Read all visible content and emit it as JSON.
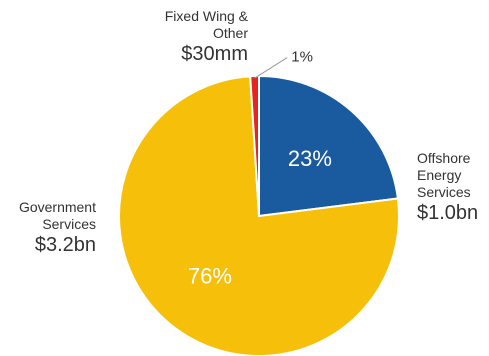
{
  "chart_data": {
    "type": "pie",
    "colors": {
      "offshore": "#1a5a9e",
      "government": "#f6c00a",
      "fixed_wing": "#e52521",
      "slice_border": "#ffffff",
      "pct_text": "#ffffff",
      "small_pct_text": "#333333",
      "label_text": "#333333"
    },
    "slices": [
      {
        "key": "offshore",
        "label_lines": [
          "Offshore",
          "Energy",
          "Services"
        ],
        "value_label": "$1.0bn",
        "percent": 23,
        "percent_label": "23%"
      },
      {
        "key": "government",
        "label_lines": [
          "Government",
          "Services"
        ],
        "value_label": "$3.2bn",
        "percent": 76,
        "percent_label": "76%"
      },
      {
        "key": "fixed_wing",
        "label_lines": [
          "Fixed Wing &",
          "Other"
        ],
        "value_label": "$30mm",
        "percent": 1,
        "percent_label": "1%"
      }
    ]
  }
}
